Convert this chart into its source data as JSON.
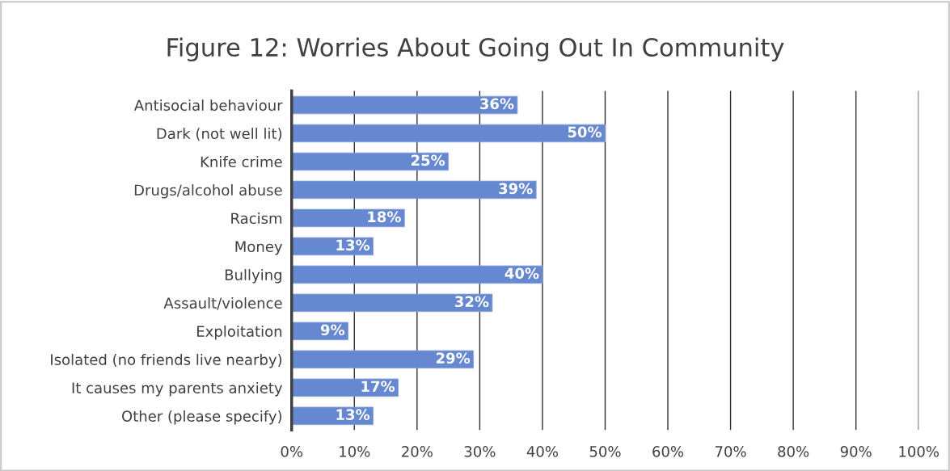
{
  "chart_data": {
    "type": "bar",
    "orientation": "horizontal",
    "title": "Figure 12: Worries About Going Out In Community",
    "categories": [
      "Antisocial behaviour",
      "Dark (not well lit)",
      "Knife crime",
      "Drugs/alcohol abuse",
      "Racism",
      "Money",
      "Bullying",
      "Assault/violence",
      "Exploitation",
      "Isolated (no friends live nearby)",
      "It causes my parents anxiety",
      "Other (please specify)"
    ],
    "values": [
      36,
      50,
      25,
      39,
      18,
      13,
      40,
      32,
      9,
      29,
      17,
      13
    ],
    "color": "#6688d0",
    "value_labels": [
      "36%",
      "50%",
      "25%",
      "39%",
      "18%",
      "13%",
      "40%",
      "32%",
      "9%",
      "29%",
      "17%",
      "13%"
    ],
    "xlim": [
      0,
      100
    ],
    "xticks": [
      {
        "value": 0,
        "label": "0%"
      },
      {
        "value": 10,
        "label": "10%"
      },
      {
        "value": 20,
        "label": "20%"
      },
      {
        "value": 30,
        "label": "30%"
      },
      {
        "value": 40,
        "label": "40%"
      },
      {
        "value": 50,
        "label": "50%"
      },
      {
        "value": 60,
        "label": "60%"
      },
      {
        "value": 70,
        "label": "70%"
      },
      {
        "value": 80,
        "label": "80%"
      },
      {
        "value": 90,
        "label": "90%"
      },
      {
        "value": 100,
        "label": "100%"
      }
    ],
    "grid": "x"
  }
}
